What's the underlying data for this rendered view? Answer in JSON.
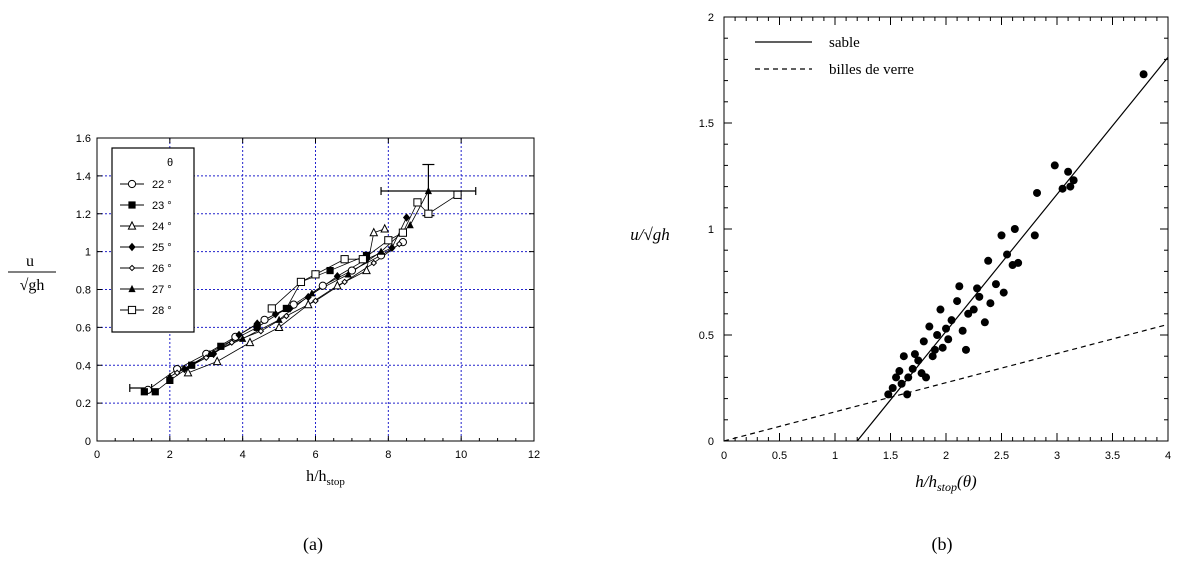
{
  "chart_data": [
    {
      "type": "scatter",
      "label": "(a)",
      "xlabel": "h/h",
      "xlabel_sub": "stop",
      "ylabel_top": "u",
      "ylabel_bottom": "√gh",
      "xlim": [
        0,
        12
      ],
      "ylim": [
        0,
        1.6
      ],
      "x_ticks": [
        "0",
        "2",
        "4",
        "6",
        "8",
        "10",
        "12"
      ],
      "y_ticks": [
        "0",
        "0.2",
        "0.4",
        "0.6",
        "0.8",
        "1",
        "1.2",
        "1.4",
        "1.6"
      ],
      "grid": true,
      "legend_position": "top-left",
      "legend_title": "θ",
      "colors": {
        "grid": "#2222cc",
        "axis": "#000000"
      },
      "series": [
        {
          "name": "22 °",
          "marker": "circle-open",
          "points": [
            [
              1.4,
              0.27
            ],
            [
              2.2,
              0.38
            ],
            [
              3.0,
              0.46
            ],
            [
              3.8,
              0.55
            ],
            [
              4.6,
              0.64
            ],
            [
              5.4,
              0.72
            ],
            [
              6.2,
              0.82
            ],
            [
              7.0,
              0.9
            ],
            [
              7.8,
              0.98
            ],
            [
              8.4,
              1.05
            ]
          ]
        },
        {
          "name": "23 °",
          "marker": "square-filled",
          "points": [
            [
              1.3,
              0.26
            ],
            [
              1.6,
              0.26
            ],
            [
              2.0,
              0.32
            ],
            [
              2.6,
              0.4
            ],
            [
              3.4,
              0.5
            ],
            [
              4.4,
              0.6
            ],
            [
              5.2,
              0.7
            ],
            [
              5.6,
              0.84
            ],
            [
              6.4,
              0.9
            ],
            [
              7.4,
              0.98
            ]
          ]
        },
        {
          "name": "24 °",
          "marker": "triangle-open",
          "points": [
            [
              2.5,
              0.36
            ],
            [
              3.3,
              0.42
            ],
            [
              4.2,
              0.52
            ],
            [
              5.0,
              0.6
            ],
            [
              5.8,
              0.72
            ],
            [
              6.6,
              0.82
            ],
            [
              7.4,
              0.9
            ],
            [
              7.6,
              1.1
            ],
            [
              7.9,
              1.12
            ]
          ]
        },
        {
          "name": "25 °",
          "marker": "diamond-filled",
          "points": [
            [
              2.4,
              0.38
            ],
            [
              3.2,
              0.46
            ],
            [
              3.9,
              0.56
            ],
            [
              4.4,
              0.62
            ],
            [
              4.9,
              0.67
            ],
            [
              5.3,
              0.7
            ],
            [
              5.8,
              0.76
            ],
            [
              6.6,
              0.87
            ],
            [
              7.4,
              0.96
            ],
            [
              8.1,
              1.02
            ],
            [
              8.5,
              1.18
            ]
          ]
        },
        {
          "name": "26 °",
          "marker": "diamond-small",
          "points": [
            [
              2.2,
              0.36
            ],
            [
              3.0,
              0.44
            ],
            [
              3.7,
              0.52
            ],
            [
              4.5,
              0.58
            ],
            [
              5.2,
              0.66
            ],
            [
              6.0,
              0.74
            ],
            [
              6.8,
              0.84
            ],
            [
              7.6,
              0.94
            ],
            [
              8.3,
              1.04
            ]
          ]
        },
        {
          "name": "27 °",
          "marker": "triangle-filled",
          "points": [
            [
              2.0,
              0.34
            ],
            [
              3.1,
              0.46
            ],
            [
              4.0,
              0.54
            ],
            [
              5.0,
              0.64
            ],
            [
              5.9,
              0.78
            ],
            [
              6.9,
              0.88
            ],
            [
              7.8,
              1.0
            ],
            [
              8.6,
              1.14
            ],
            [
              9.1,
              1.32
            ]
          ]
        },
        {
          "name": "28 °",
          "marker": "square-open",
          "points": [
            [
              4.8,
              0.7
            ],
            [
              5.6,
              0.84
            ],
            [
              6.0,
              0.88
            ],
            [
              6.8,
              0.96
            ],
            [
              7.3,
              0.96
            ],
            [
              8.0,
              1.06
            ],
            [
              8.4,
              1.1
            ],
            [
              8.8,
              1.26
            ],
            [
              9.1,
              1.2
            ],
            [
              9.9,
              1.3
            ]
          ]
        }
      ],
      "error_bars": [
        {
          "x": 1.2,
          "y": 0.28,
          "x_min": 0.9,
          "x_max": 1.5
        },
        {
          "x": 9.1,
          "y": 1.32,
          "x_min": 7.8,
          "x_max": 10.4,
          "y_min": 1.19,
          "y_max": 1.46
        }
      ]
    },
    {
      "type": "scatter",
      "label": "(b)",
      "xlabel": "h/h",
      "xlabel_sub": "stop",
      "xlabel_suffix": "(θ)",
      "ylabel": "u/√gh",
      "xlim": [
        0,
        4
      ],
      "ylim": [
        0,
        2
      ],
      "x_ticks": [
        "0",
        "0.5",
        "1",
        "1.5",
        "2",
        "2.5",
        "3",
        "3.5",
        "4"
      ],
      "y_ticks": [
        "0",
        "0.5",
        "1",
        "1.5",
        "2"
      ],
      "grid": false,
      "legend_position": "top-left",
      "colors": {
        "axis": "#000000",
        "points": "#000000"
      },
      "lines": [
        {
          "name": "sable",
          "style": "solid",
          "points": [
            [
              1.2,
              0
            ],
            [
              4.0,
              1.81
            ]
          ]
        },
        {
          "name": "billes de verre",
          "style": "dashed",
          "points": [
            [
              0,
              0
            ],
            [
              4.0,
              0.55
            ]
          ]
        }
      ],
      "points": [
        [
          1.48,
          0.22
        ],
        [
          1.52,
          0.25
        ],
        [
          1.55,
          0.3
        ],
        [
          1.58,
          0.33
        ],
        [
          1.6,
          0.27
        ],
        [
          1.62,
          0.4
        ],
        [
          1.65,
          0.22
        ],
        [
          1.66,
          0.3
        ],
        [
          1.7,
          0.34
        ],
        [
          1.72,
          0.41
        ],
        [
          1.75,
          0.38
        ],
        [
          1.78,
          0.32
        ],
        [
          1.8,
          0.47
        ],
        [
          1.82,
          0.3
        ],
        [
          1.85,
          0.54
        ],
        [
          1.88,
          0.4
        ],
        [
          1.9,
          0.43
        ],
        [
          1.92,
          0.5
        ],
        [
          1.95,
          0.62
        ],
        [
          1.97,
          0.44
        ],
        [
          2.0,
          0.53
        ],
        [
          2.02,
          0.48
        ],
        [
          2.05,
          0.57
        ],
        [
          2.1,
          0.66
        ],
        [
          2.12,
          0.73
        ],
        [
          2.15,
          0.52
        ],
        [
          2.18,
          0.43
        ],
        [
          2.2,
          0.6
        ],
        [
          2.25,
          0.62
        ],
        [
          2.28,
          0.72
        ],
        [
          2.3,
          0.68
        ],
        [
          2.35,
          0.56
        ],
        [
          2.38,
          0.85
        ],
        [
          2.4,
          0.65
        ],
        [
          2.45,
          0.74
        ],
        [
          2.5,
          0.97
        ],
        [
          2.52,
          0.7
        ],
        [
          2.55,
          0.88
        ],
        [
          2.6,
          0.83
        ],
        [
          2.62,
          1.0
        ],
        [
          2.65,
          0.84
        ],
        [
          2.8,
          0.97
        ],
        [
          2.82,
          1.17
        ],
        [
          2.98,
          1.3
        ],
        [
          3.05,
          1.19
        ],
        [
          3.1,
          1.27
        ],
        [
          3.12,
          1.2
        ],
        [
          3.15,
          1.23
        ],
        [
          3.78,
          1.73
        ]
      ]
    }
  ]
}
